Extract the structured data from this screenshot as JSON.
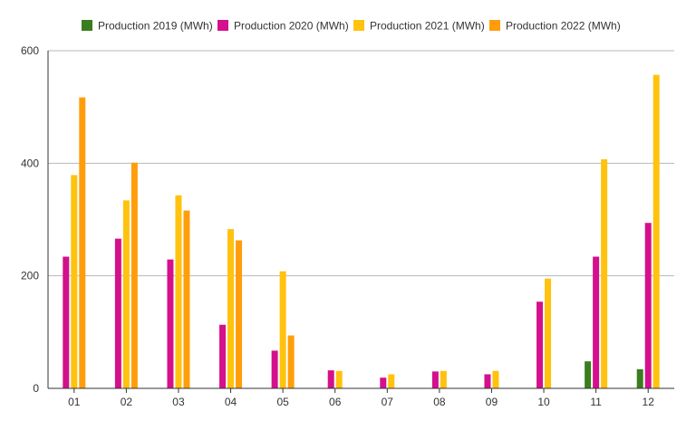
{
  "chart_data": {
    "type": "bar",
    "title": "",
    "xlabel": "",
    "ylabel": "",
    "categories": [
      "01",
      "02",
      "03",
      "04",
      "05",
      "06",
      "07",
      "08",
      "09",
      "10",
      "11",
      "12"
    ],
    "ylim": [
      0,
      600
    ],
    "yticks": [
      0,
      200,
      400,
      600
    ],
    "grid": true,
    "legend_position": "top",
    "series": [
      {
        "name": "Production 2019 (MWh)",
        "color": "#3a7d1e",
        "values": [
          null,
          null,
          null,
          null,
          null,
          null,
          null,
          null,
          null,
          null,
          48,
          34
        ]
      },
      {
        "name": "Production 2020 (MWh)",
        "color": "#d4108c",
        "values": [
          234,
          266,
          229,
          113,
          67,
          32,
          19,
          30,
          25,
          154,
          234,
          294
        ]
      },
      {
        "name": "Production 2021 (MWh)",
        "color": "#ffc20e",
        "values": [
          379,
          334,
          343,
          283,
          208,
          31,
          25,
          31,
          31,
          195,
          407,
          557
        ]
      },
      {
        "name": "Production 2022 (MWh)",
        "color": "#ff9e0a",
        "values": [
          517,
          401,
          316,
          263,
          94,
          null,
          null,
          null,
          null,
          null,
          null,
          null
        ]
      }
    ]
  }
}
